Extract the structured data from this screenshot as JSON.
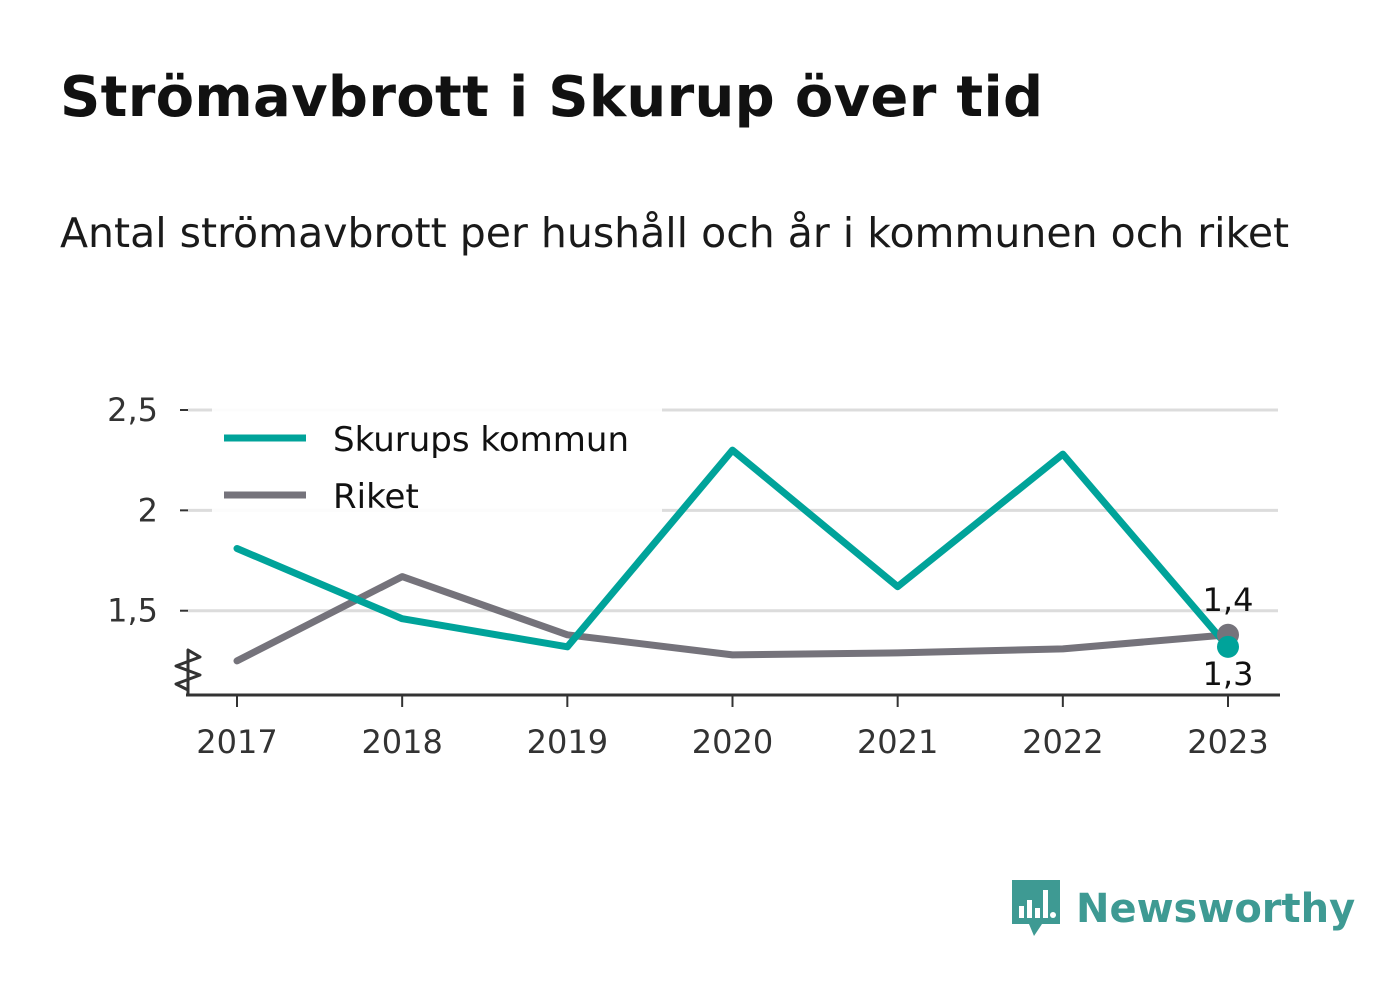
{
  "title": "Strömavbrott i Skurup över tid",
  "subtitle": "Antal strömavbrott per hushåll och år i kommunen och riket",
  "chart_data": {
    "type": "line",
    "x": [
      "2017",
      "2018",
      "2019",
      "2020",
      "2021",
      "2022",
      "2023"
    ],
    "series": [
      {
        "name": "Skurups kommun",
        "color": "#00a39a",
        "values": [
          1.81,
          1.46,
          1.32,
          2.3,
          1.62,
          2.28,
          1.32
        ],
        "end_label": "1,3"
      },
      {
        "name": "Riket",
        "color": "#75737b",
        "values": [
          1.25,
          1.67,
          1.38,
          1.28,
          1.29,
          1.31,
          1.38
        ],
        "end_label": "1,4"
      }
    ],
    "y_ticks": [
      {
        "value": 1.5,
        "label": "1,5"
      },
      {
        "value": 2,
        "label": "2"
      },
      {
        "value": 2.5,
        "label": "2,5"
      }
    ],
    "ylim": [
      1.08,
      2.5
    ],
    "y_axis_break": true,
    "grid": true,
    "legend_position": "top-left",
    "xlabel": "",
    "ylabel": ""
  },
  "brand": {
    "name": "Newsworthy",
    "icon": "newsworthy-bar-chart-logo-icon",
    "color": "#3e9a93"
  }
}
